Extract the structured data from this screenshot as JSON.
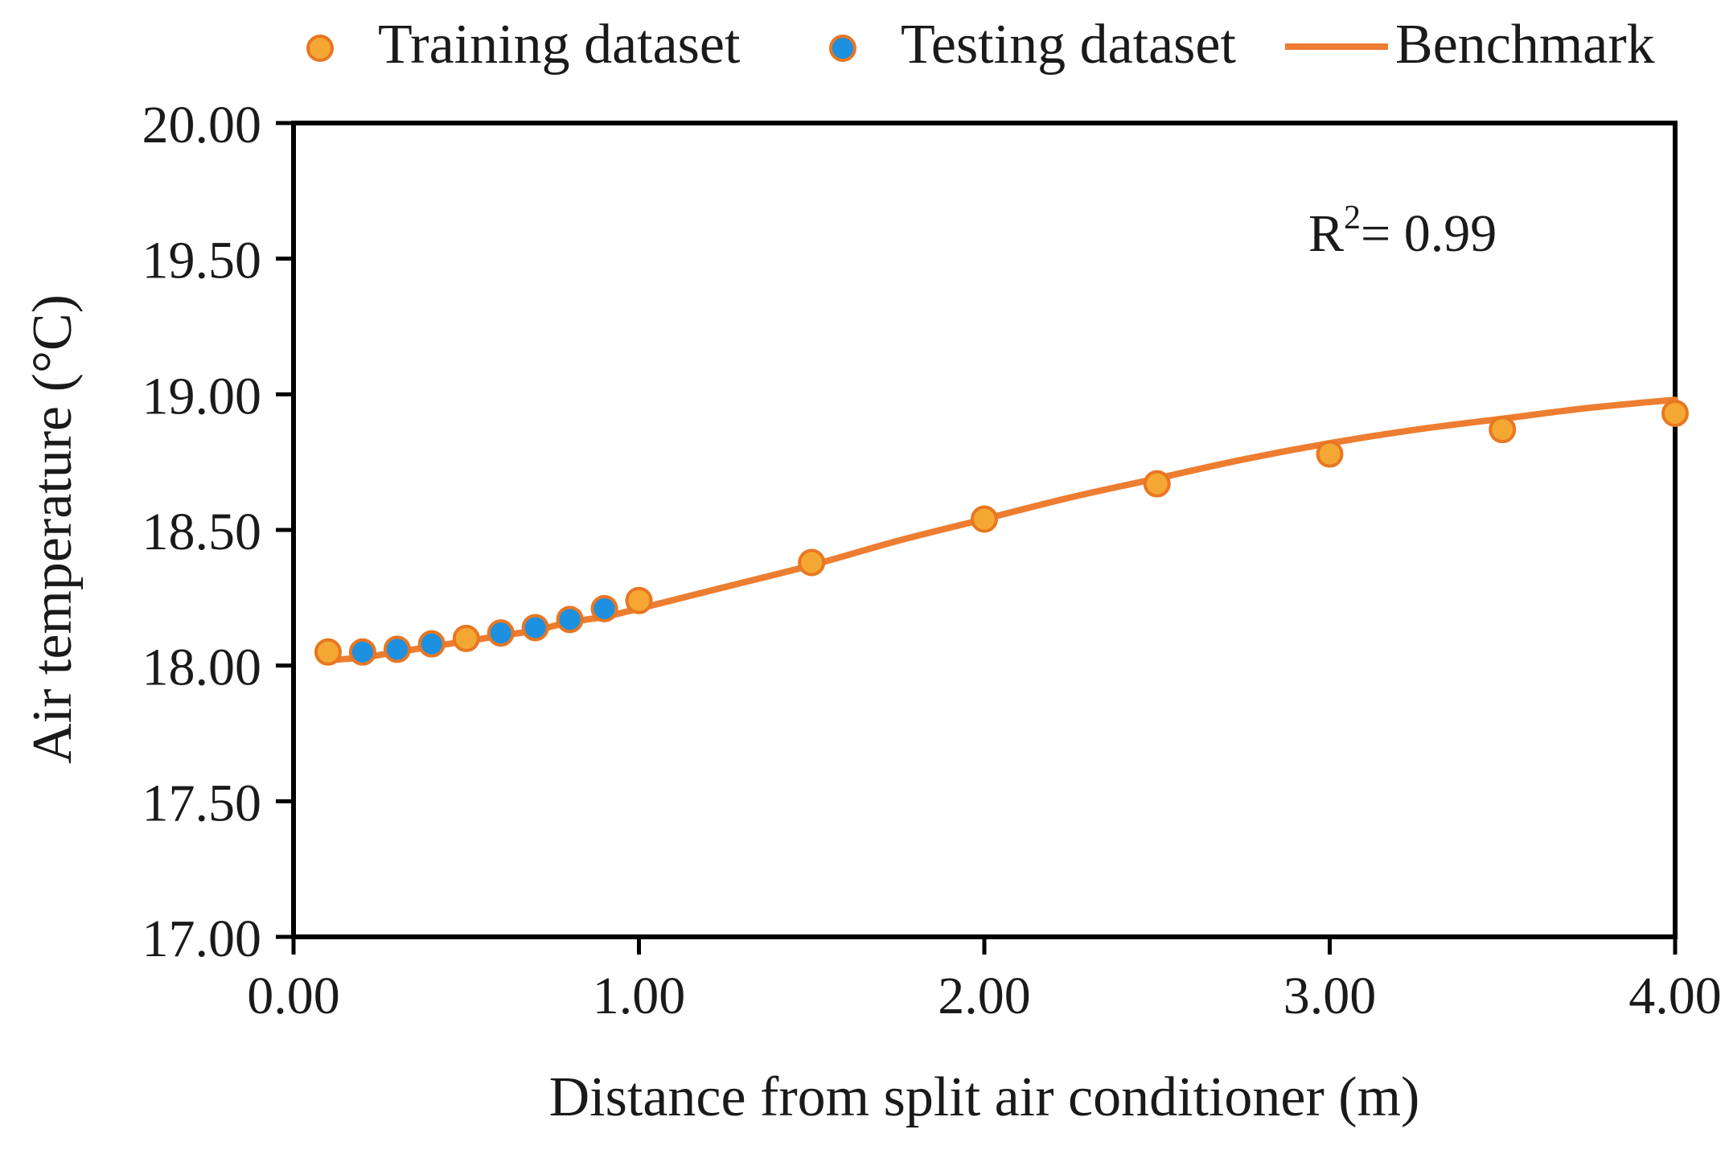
{
  "chart_data": {
    "type": "scatter",
    "title": "",
    "xlabel": "Distance from split air conditioner (m)",
    "ylabel": "Air temperature (°C)",
    "xlim": [
      0,
      4
    ],
    "ylim": [
      17,
      20
    ],
    "xticks": [
      0,
      1,
      2,
      3,
      4
    ],
    "yticks": [
      17,
      17.5,
      18,
      18.5,
      19,
      19.5,
      20
    ],
    "xtick_labels": [
      "0.00",
      "1.00",
      "2.00",
      "3.00",
      "4.00"
    ],
    "ytick_labels": [
      "17.00",
      "17.50",
      "18.00",
      "18.50",
      "19.00",
      "19.50",
      "20.00"
    ],
    "grid": false,
    "legend_position": "top",
    "annotation": {
      "text_main": "R",
      "text_sup": "2",
      "text_rest": "= 0.99"
    },
    "series": [
      {
        "name": "Training dataset",
        "kind": "scatter",
        "color": "#F5A733",
        "edge_color": "#E87722",
        "points": [
          [
            0.1,
            18.05
          ],
          [
            0.5,
            18.1
          ],
          [
            1.0,
            18.24
          ],
          [
            1.5,
            18.38
          ],
          [
            2.0,
            18.54
          ],
          [
            2.5,
            18.67
          ],
          [
            3.0,
            18.78
          ],
          [
            3.5,
            18.87
          ],
          [
            4.0,
            18.93
          ]
        ]
      },
      {
        "name": "Testing dataset",
        "kind": "scatter",
        "color": "#1E90E0",
        "edge_color": "#E87722",
        "points": [
          [
            0.2,
            18.05
          ],
          [
            0.3,
            18.06
          ],
          [
            0.4,
            18.08
          ],
          [
            0.6,
            18.12
          ],
          [
            0.7,
            18.14
          ],
          [
            0.8,
            18.17
          ],
          [
            0.9,
            18.21
          ]
        ]
      },
      {
        "name": "Benchmark",
        "kind": "line",
        "color": "#ED7D31",
        "points": [
          [
            0.1,
            18.02
          ],
          [
            0.2,
            18.03
          ],
          [
            0.3,
            18.05
          ],
          [
            0.4,
            18.07
          ],
          [
            0.5,
            18.09
          ],
          [
            0.6,
            18.11
          ],
          [
            0.7,
            18.13
          ],
          [
            0.8,
            18.16
          ],
          [
            0.9,
            18.18
          ],
          [
            1.0,
            18.21
          ],
          [
            1.25,
            18.29
          ],
          [
            1.5,
            18.37
          ],
          [
            1.75,
            18.46
          ],
          [
            2.0,
            18.54
          ],
          [
            2.25,
            18.62
          ],
          [
            2.5,
            18.69
          ],
          [
            2.75,
            18.76
          ],
          [
            3.0,
            18.82
          ],
          [
            3.25,
            18.87
          ],
          [
            3.5,
            18.91
          ],
          [
            3.75,
            18.95
          ],
          [
            4.0,
            18.98
          ]
        ]
      }
    ]
  }
}
